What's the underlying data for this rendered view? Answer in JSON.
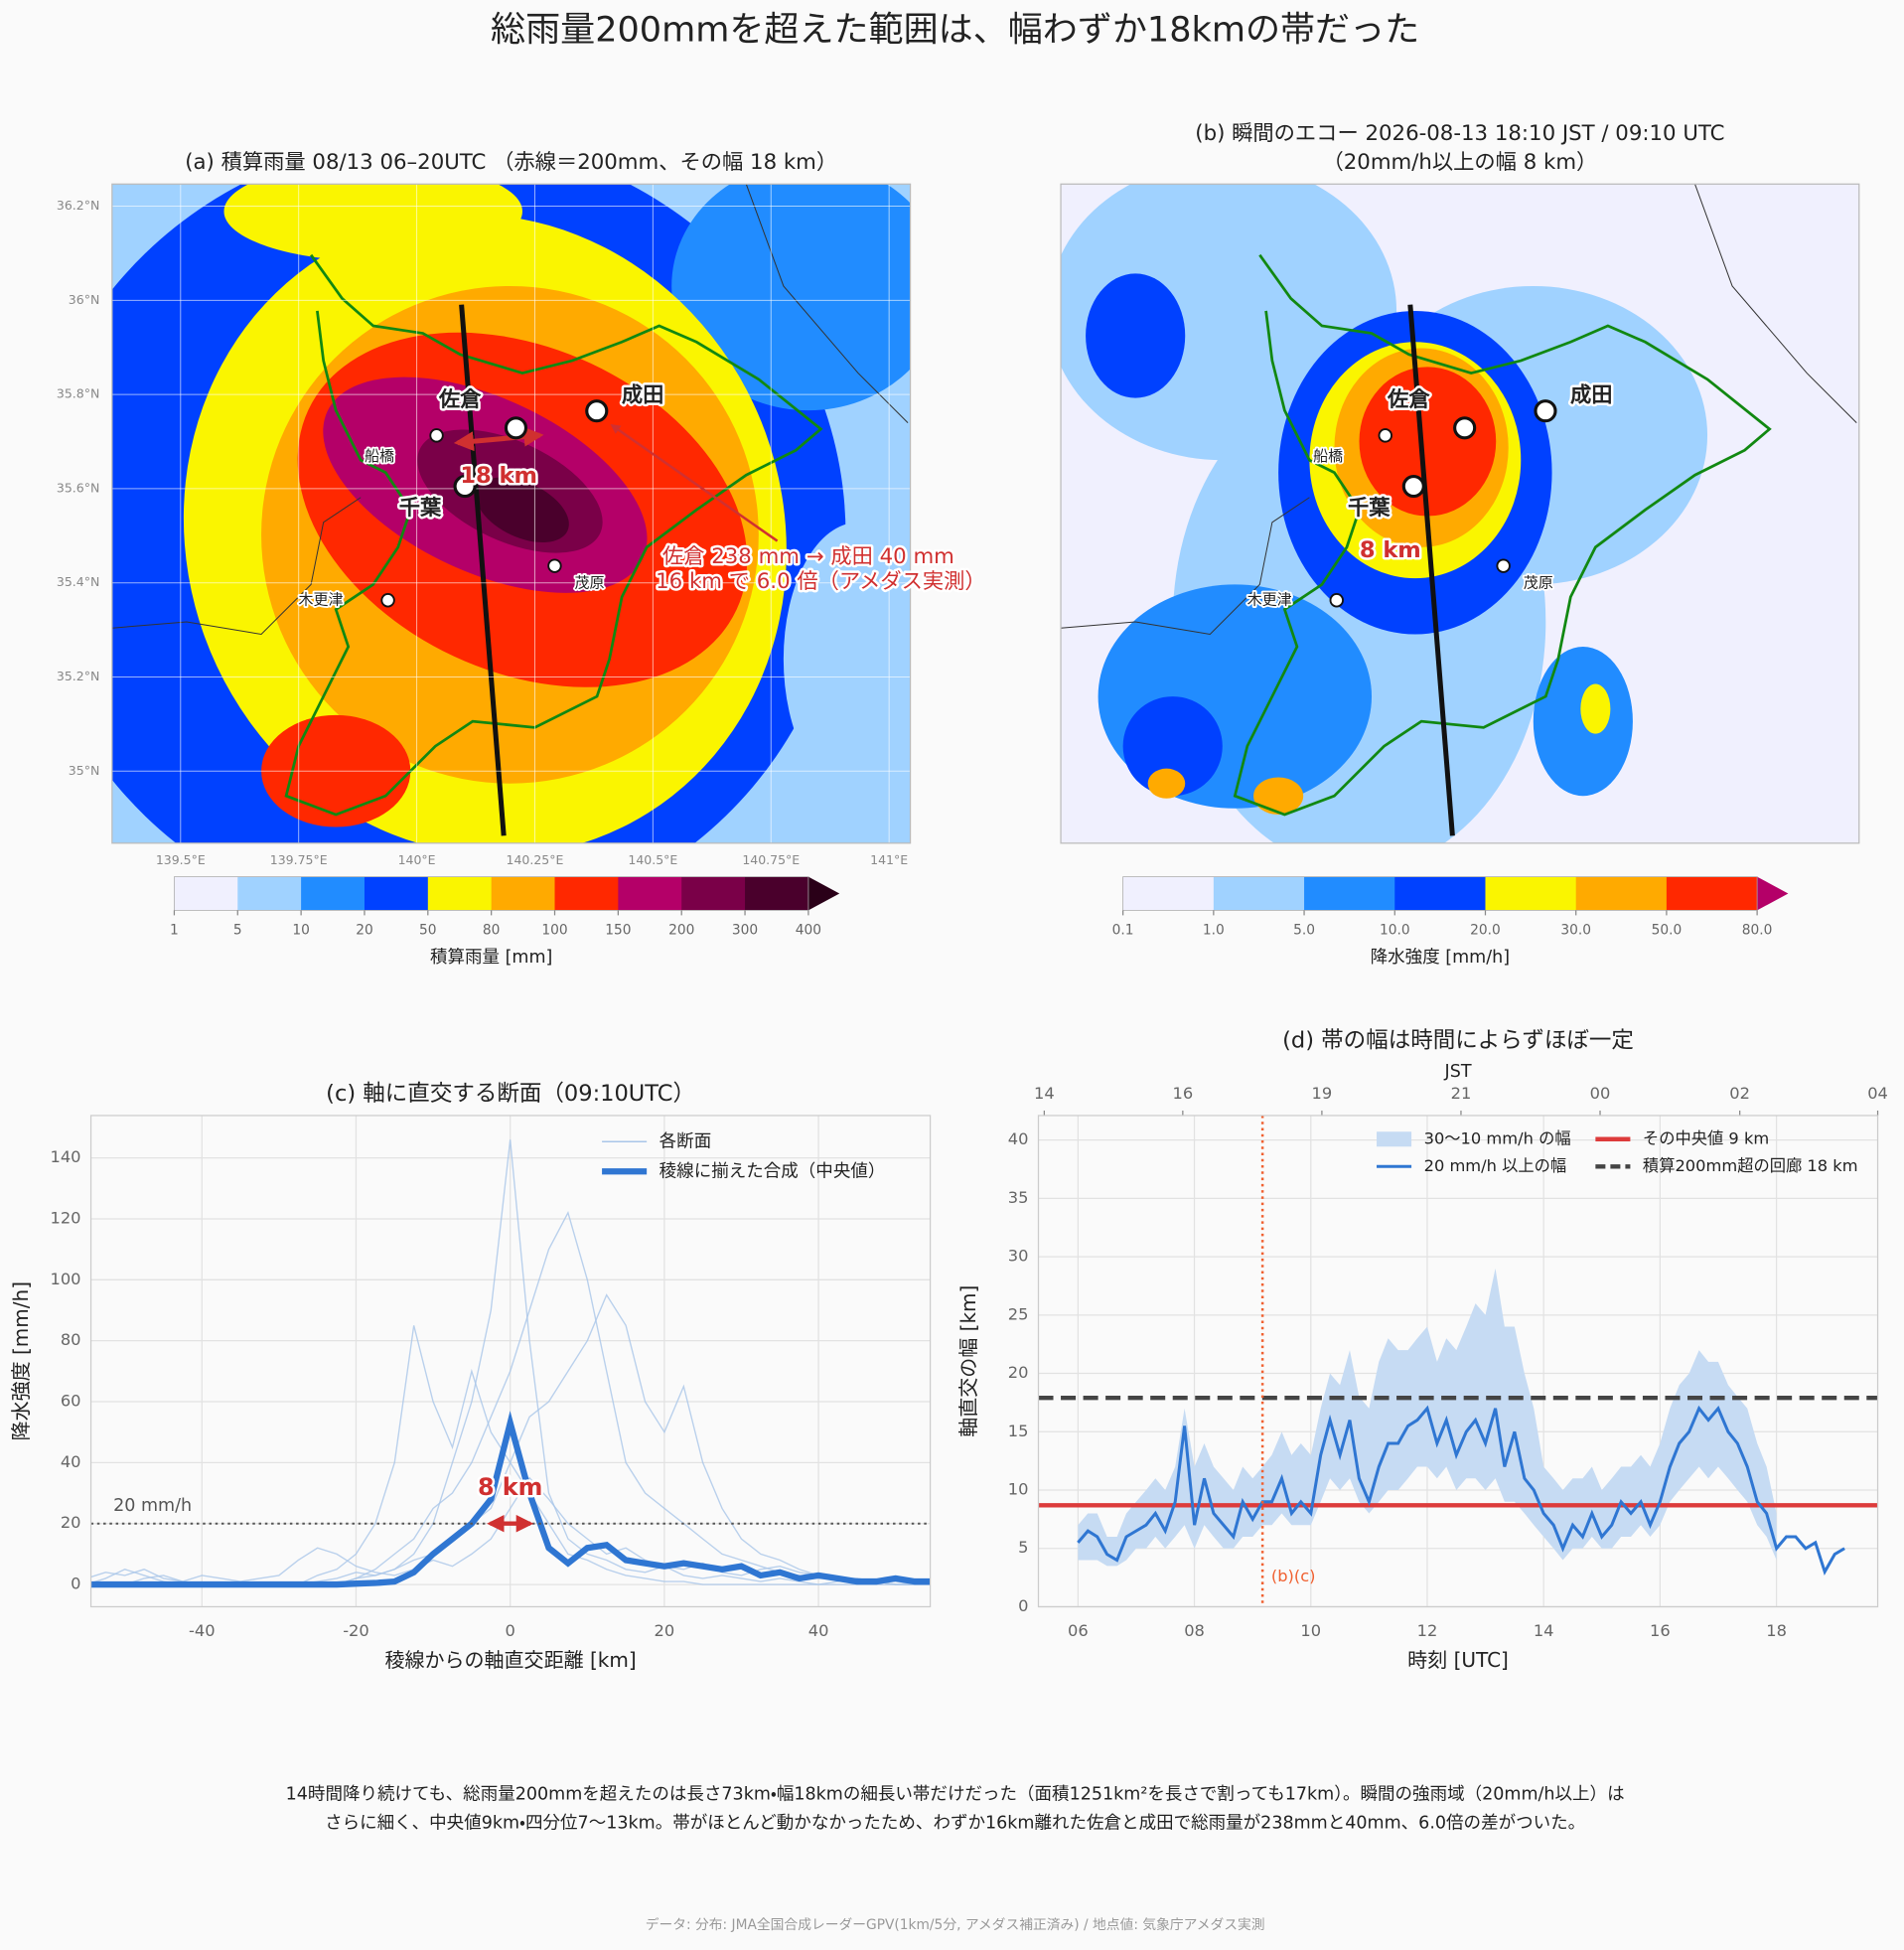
{
  "title": "総雨量200mmを超えた範囲は、幅わずか18kmの帯だった",
  "caption": [
    "14時間降り続けても、総雨量200mmを超えたのは長さ73km・幅18kmの細長い帯だけだった（面積1251km²を長さで割っても17km）。瞬間の強雨域（20mm/h以上）は",
    "さらに細く、中央値9km・四分位7〜13km。帯がほとんど動かなかったため、わずか16km離れた佐倉と成田で総雨量が238mmと40mm、6.0倍の差がついた。"
  ],
  "source": "データ: 分布: JMA全国合成レーダーGPV(1km/5分, アメダス補正済み) / 地点値: 気象庁アメダス実測",
  "chart_data": [
    {
      "type": "map",
      "title": "(a) 積算雨量 08/13 06–20UTC （赤線＝200mm、その幅 18 km）",
      "xlim": [
        139.355,
        141.045
      ],
      "ylim": [
        34.847,
        36.247
      ],
      "xticks": [
        {
          "value": 139.5,
          "label": "139.5°E"
        },
        {
          "value": 139.75,
          "label": "139.75°E"
        },
        {
          "value": 140,
          "label": "140°E"
        },
        {
          "value": 140.25,
          "label": "140.25°E"
        },
        {
          "value": 140.5,
          "label": "140.5°E"
        },
        {
          "value": 140.75,
          "label": "140.75°E"
        },
        {
          "value": 141,
          "label": "141°E"
        }
      ],
      "yticks": [
        {
          "value": 35,
          "label": "35°N"
        },
        {
          "value": 35.2,
          "label": "35.2°N"
        },
        {
          "value": 35.4,
          "label": "35.4°N"
        },
        {
          "value": 35.6,
          "label": "35.6°N"
        },
        {
          "value": 35.8,
          "label": "35.8°N"
        },
        {
          "value": 36,
          "label": "36°N"
        },
        {
          "value": 36.2,
          "label": "36.2°N"
        }
      ],
      "grid": true,
      "places": [
        {
          "name": "佐倉",
          "lon": 140.21,
          "lat": 35.729,
          "major": true
        },
        {
          "name": "成田",
          "lon": 140.381,
          "lat": 35.765,
          "major": true
        },
        {
          "name": "船橋",
          "lon": 140.042,
          "lat": 35.713,
          "major": false
        },
        {
          "name": "千葉",
          "lon": 140.102,
          "lat": 35.605,
          "major": true
        },
        {
          "name": "木更津",
          "lon": 139.939,
          "lat": 35.363,
          "major": false
        },
        {
          "name": "茂原",
          "lon": 140.292,
          "lat": 35.436,
          "major": false
        }
      ],
      "annotations": [
        "18 km",
        "佐倉 238 mm → 成田 40 mm",
        "16 km で 6.0 倍（アメダス実測）"
      ],
      "colorbar": {
        "label": "積算雨量 [mm]",
        "ticks": [
          1,
          5,
          10,
          20,
          50,
          80,
          100,
          150,
          200,
          300,
          400
        ],
        "colors": [
          "#f0f0fe",
          "#a0d2ff",
          "#218cff",
          "#0041ff",
          "#faf500",
          "#ffaa00",
          "#ff2800",
          "#b40068",
          "#7a0048",
          "#4a002c"
        ],
        "over_color": "#2a0018"
      }
    },
    {
      "type": "map",
      "title": "(b) 瞬間のエコー 2026-08-13 18:10 JST / 09:10 UTC",
      "subtitle": "（20mm/h以上の幅 8 km）",
      "xlim": [
        139.355,
        141.045
      ],
      "ylim": [
        34.847,
        36.247
      ],
      "places": [
        {
          "name": "佐倉",
          "lon": 140.21,
          "lat": 35.729,
          "major": true
        },
        {
          "name": "成田",
          "lon": 140.381,
          "lat": 35.765,
          "major": true
        },
        {
          "name": "船橋",
          "lon": 140.042,
          "lat": 35.713,
          "major": false
        },
        {
          "name": "千葉",
          "lon": 140.102,
          "lat": 35.605,
          "major": true
        },
        {
          "name": "木更津",
          "lon": 139.939,
          "lat": 35.363,
          "major": false
        },
        {
          "name": "茂原",
          "lon": 140.292,
          "lat": 35.436,
          "major": false
        }
      ],
      "annotations": [
        "8 km"
      ],
      "colorbar": {
        "label": "降水強度 [mm/h]",
        "ticks": [
          0.1,
          {
            "value": 1,
            "label": "1.0"
          },
          {
            "value": 5,
            "label": "5.0"
          },
          {
            "value": 10,
            "label": "10.0"
          },
          {
            "value": 20,
            "label": "20.0"
          },
          {
            "value": 30,
            "label": "30.0"
          },
          {
            "value": 50,
            "label": "50.0"
          },
          {
            "value": 80,
            "label": "80.0"
          }
        ],
        "colors": [
          "#f0f0fe",
          "#a0d2ff",
          "#218cff",
          "#0041ff",
          "#faf500",
          "#ffaa00",
          "#ff2800"
        ],
        "over_color": "#b40068"
      }
    },
    {
      "type": "line",
      "title": "(c) 軸に直交する断面（09:10UTC）",
      "xlabel": "稜線からの軸直交距離 [km]",
      "ylabel": "降水強度 [mm/h]",
      "xlim": [
        -54.4,
        54.5
      ],
      "ylim": [
        -7.3,
        153.9
      ],
      "xticks": [
        -40,
        -20,
        0,
        20,
        40
      ],
      "yticks": [
        0,
        20,
        40,
        60,
        80,
        100,
        120,
        140
      ],
      "grid": true,
      "legend": "upper right",
      "x": [
        -55,
        -52.5,
        -50,
        -47.5,
        -45,
        -42.5,
        -40,
        -37.5,
        -35,
        -32.5,
        -30,
        -27.5,
        -25,
        -22.5,
        -20,
        -17.5,
        -15,
        -12.5,
        -10,
        -7.5,
        -5,
        -2.5,
        0,
        2.5,
        5,
        7.5,
        10,
        12.5,
        15,
        17.5,
        20,
        22.5,
        25,
        27.5,
        30,
        32.5,
        35,
        37.5,
        40,
        42.5,
        45,
        47.5,
        50,
        52.5,
        55
      ],
      "series": [
        {
          "name": "各断面",
          "color": "#a9c6e8",
          "lines": [
            [
              0,
              0,
              0,
              2,
              3,
              1,
              0,
              0,
              0,
              0,
              0,
              0,
              1,
              2,
              4,
              3,
              5,
              10,
              20,
              40,
              60,
              90,
              146,
              80,
              30,
              15,
              10,
              8,
              5,
              4,
              6,
              3,
              2,
              3,
              2,
              1,
              2,
              1,
              0,
              1,
              2,
              1,
              0,
              0,
              0
            ],
            [
              0,
              2,
              5,
              3,
              1,
              0,
              0,
              0,
              0,
              0,
              0,
              0,
              0,
              0,
              2,
              5,
              10,
              15,
              25,
              30,
              40,
              55,
              70,
              90,
              110,
              122,
              100,
              70,
              40,
              30,
              25,
              20,
              15,
              10,
              8,
              6,
              4,
              3,
              2,
              2,
              1,
              1,
              0,
              0,
              0
            ],
            [
              0,
              0,
              0,
              0,
              0,
              0,
              0,
              0,
              0,
              0,
              0,
              0,
              3,
              5,
              10,
              20,
              40,
              85,
              60,
              45,
              70,
              50,
              40,
              30,
              20,
              10,
              8,
              5,
              3,
              2,
              1,
              1,
              0,
              0,
              0,
              0,
              0,
              0,
              0,
              0,
              0,
              0,
              0,
              0,
              0
            ],
            [
              0,
              0,
              0,
              0,
              0,
              0,
              0,
              0,
              0,
              0,
              0,
              0,
              0,
              0,
              2,
              3,
              5,
              8,
              10,
              15,
              20,
              25,
              40,
              55,
              60,
              70,
              80,
              95,
              85,
              60,
              50,
              65,
              40,
              25,
              15,
              10,
              8,
              5,
              3,
              2,
              1,
              1,
              0,
              0,
              0
            ],
            [
              2,
              4,
              3,
              5,
              2,
              1,
              3,
              2,
              1,
              2,
              3,
              8,
              12,
              10,
              6,
              4,
              3,
              5,
              8,
              6,
              10,
              15,
              25,
              35,
              28,
              20,
              15,
              10,
              12,
              8,
              6,
              5,
              7,
              4,
              3,
              5,
              6,
              4,
              3,
              2,
              2,
              1,
              1,
              0,
              0
            ]
          ]
        },
        {
          "name": "稜線に揃えた合成（中央値）",
          "color": "#2f76d2",
          "values": [
            0,
            0,
            0,
            0,
            0,
            0,
            0,
            0,
            0,
            0,
            0,
            0,
            0,
            0,
            0.3,
            0.5,
            1,
            4,
            10,
            15,
            20,
            28,
            53,
            30,
            12,
            7,
            12,
            13,
            8,
            7,
            6,
            7,
            6,
            5,
            6,
            3,
            4,
            2,
            3,
            2,
            1,
            1,
            2,
            1,
            1
          ]
        }
      ],
      "threshold": {
        "value": 20,
        "label": "20 mm/h"
      },
      "annotation": "8 km"
    },
    {
      "type": "line",
      "title": "(d) 帯の幅は時間によらずほぼ一定",
      "xlabel": "時刻 [UTC]",
      "ylabel": "軸直交の幅 [km]",
      "x2label": "JST",
      "xlim": [
        5.32,
        19.74
      ],
      "ylim": [
        0,
        42.1
      ],
      "xticks": [
        {
          "value": 6,
          "label": "06"
        },
        {
          "value": 8,
          "label": "08"
        },
        10,
        12,
        14,
        16,
        18
      ],
      "x2ticks": [
        {
          "value": 5.42,
          "label": "14"
        },
        {
          "value": 7.8,
          "label": "16"
        },
        {
          "value": 10.19,
          "label": "19"
        },
        {
          "value": 12.58,
          "label": "21"
        },
        {
          "value": 14.97,
          "label": "00"
        },
        {
          "value": 17.37,
          "label": "02"
        },
        {
          "value": 19.74,
          "label": "04"
        }
      ],
      "yticks": [
        0,
        5,
        10,
        15,
        20,
        25,
        30,
        35,
        40
      ],
      "grid": true,
      "legend": "upper right",
      "x": [
        6,
        6.17,
        6.33,
        6.5,
        6.67,
        6.83,
        7,
        7.17,
        7.33,
        7.5,
        7.67,
        7.83,
        8,
        8.17,
        8.33,
        8.5,
        8.67,
        8.83,
        9,
        9.17,
        9.33,
        9.5,
        9.67,
        9.83,
        10,
        10.17,
        10.33,
        10.5,
        10.67,
        10.83,
        11,
        11.17,
        11.33,
        11.5,
        11.67,
        11.83,
        12,
        12.17,
        12.33,
        12.5,
        12.67,
        12.83,
        13,
        13.17,
        13.33,
        13.5,
        13.67,
        13.83,
        14,
        14.17,
        14.33,
        14.5,
        14.67,
        14.83,
        15,
        15.17,
        15.33,
        15.5,
        15.67,
        15.83,
        16,
        16.17,
        16.33,
        16.5,
        16.67,
        16.83,
        17,
        17.17,
        17.33,
        17.5,
        17.67,
        17.83,
        18,
        18.17,
        18.33,
        18.5,
        18.67,
        18.83,
        19,
        19.17
      ],
      "band": {
        "name": "30〜10 mm/h の幅",
        "color": "#c6dbf3",
        "low": [
          4,
          4,
          4,
          3.5,
          3.5,
          4,
          5,
          5,
          6,
          5,
          6,
          7,
          5,
          7,
          6,
          5,
          5,
          6,
          6,
          7,
          7,
          8,
          7,
          7,
          7,
          9,
          11,
          10,
          11,
          9,
          8,
          9,
          10,
          10,
          11,
          12,
          12,
          11,
          12,
          10,
          11,
          11,
          10,
          11,
          9,
          9,
          8,
          7,
          6,
          5,
          4,
          5,
          5,
          6,
          5,
          5,
          6,
          6,
          7,
          6,
          7,
          9,
          10,
          11,
          12,
          11,
          12,
          11,
          10,
          9,
          7,
          6,
          4,
          null,
          null,
          null,
          null,
          null,
          null,
          null
        ],
        "high": [
          7,
          8,
          8,
          6,
          6,
          8,
          9,
          10,
          11,
          10,
          12,
          17,
          12,
          14,
          12,
          11,
          10,
          12,
          11,
          12,
          13,
          15,
          13,
          14,
          13,
          17,
          20,
          19,
          22,
          18,
          17,
          21,
          23,
          22,
          22,
          23,
          24,
          21,
          23,
          22,
          24,
          26,
          25,
          29,
          24,
          24,
          20,
          17,
          12,
          11,
          10,
          11,
          11,
          12,
          10,
          11,
          12,
          12,
          13,
          12,
          14,
          17,
          19,
          20,
          22,
          21,
          21,
          19,
          18,
          17,
          14,
          12,
          8,
          null,
          null,
          null,
          null,
          null,
          null,
          null
        ]
      },
      "series": [
        {
          "name": "20 mm/h 以上の幅",
          "color": "#2f76d2",
          "values": [
            5.5,
            6.5,
            6,
            4.5,
            4,
            6,
            6.5,
            7,
            8,
            6.5,
            9,
            15.5,
            7,
            11,
            8,
            7,
            6,
            9,
            7.5,
            9,
            9,
            11,
            8,
            9,
            8,
            13,
            16,
            13,
            16,
            11,
            9,
            12,
            14,
            14,
            15.5,
            16,
            17,
            14,
            16,
            13,
            15,
            16,
            14,
            17,
            12,
            15,
            11,
            10,
            8,
            7,
            5,
            7,
            6,
            8,
            6,
            7,
            9,
            8,
            9,
            7,
            9,
            12,
            14,
            15,
            17,
            16,
            17,
            15,
            14,
            12,
            9,
            8,
            5,
            6,
            6,
            5,
            5.5,
            3,
            4.5,
            5
          ]
        }
      ],
      "hlines": [
        {
          "name": "その中央値 9 km",
          "value": 8.7,
          "color": "#dd3b3b",
          "style": "solid"
        },
        {
          "name": "積算200mm超の回廊 18 km",
          "value": 17.9,
          "color": "#444444",
          "style": "dashed"
        }
      ],
      "vline": {
        "value": 9.17,
        "label": "(b)(c)",
        "color": "#f06030"
      }
    }
  ]
}
